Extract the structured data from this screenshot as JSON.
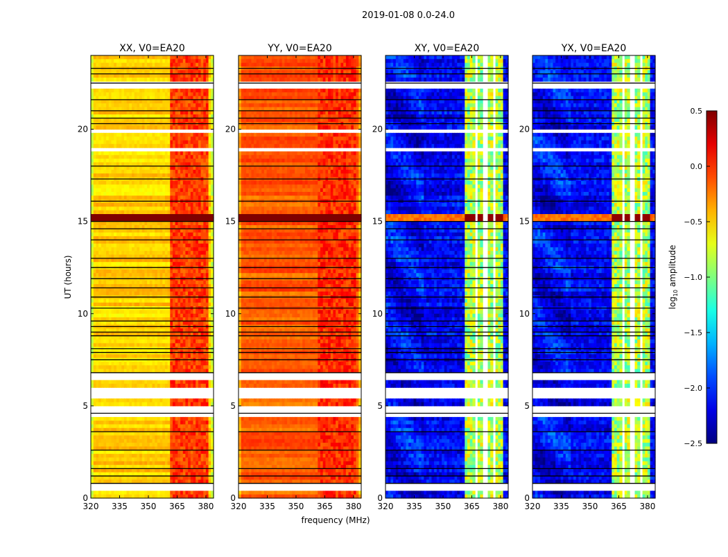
{
  "chart_data": {
    "type": "heatmap",
    "title": "2019-01-08 0.0-24.0",
    "xlabel": "frequency (MHz)",
    "ylabel": "UT (hours)",
    "xlim": [
      320,
      384
    ],
    "ylim": [
      0,
      24
    ],
    "xticks": [
      320,
      335,
      350,
      365,
      380
    ],
    "yticks": [
      0,
      5,
      10,
      15,
      20
    ],
    "panels": [
      {
        "title": "XX, V0=EA20",
        "base": -0.5,
        "band_level": -0.05
      },
      {
        "title": "YY, V0=EA20",
        "base": -0.15,
        "band_level": 0.0
      },
      {
        "title": "XY, V0=EA20",
        "base": -2.15,
        "band_level": -0.85
      },
      {
        "title": "YX, V0=EA20",
        "base": -2.15,
        "band_level": -0.85
      }
    ],
    "rfi_band_mhz": [
      362,
      381
    ],
    "flagged_channels_mhz": [
      367,
      372,
      377
    ],
    "flagged_hours": [
      [
        22.3,
        22.5
      ],
      [
        19.8,
        20.0
      ],
      [
        18.9,
        19.0
      ],
      [
        6.34,
        6.72
      ],
      [
        5.48,
        6.08
      ],
      [
        4.47,
        4.95
      ],
      [
        0.45,
        0.71
      ]
    ],
    "event_hours": [
      14.95,
      15.4
    ],
    "black_lines_hours": [
      23.3,
      23.0,
      22.5,
      21.6,
      21.0,
      20.6,
      20.3,
      18.0,
      17.3,
      16.1,
      15.0,
      14.6,
      14.0,
      13.0,
      12.5,
      11.9,
      11.4,
      10.9,
      10.3,
      9.6,
      9.3,
      9.0,
      8.8,
      8.1,
      7.9,
      7.5,
      6.8,
      4.6,
      3.6,
      2.6,
      1.6,
      1.2,
      0.8
    ],
    "colorbar": {
      "label": "log10 amplitude",
      "min": -2.5,
      "max": 0.5,
      "ticks": [
        "0.5",
        "0.0",
        "−0.5",
        "−1.0",
        "−1.5",
        "−2.0",
        "−2.5"
      ]
    }
  }
}
